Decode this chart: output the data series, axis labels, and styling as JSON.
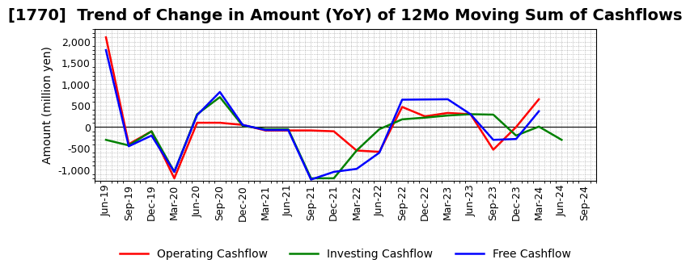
{
  "title": "[1770]  Trend of Change in Amount (YoY) of 12Mo Moving Sum of Cashflows",
  "ylabel": "Amount (million yen)",
  "x_labels": [
    "Jun-19",
    "Sep-19",
    "Dec-19",
    "Mar-20",
    "Jun-20",
    "Sep-20",
    "Dec-20",
    "Mar-21",
    "Jun-21",
    "Sep-21",
    "Dec-21",
    "Mar-22",
    "Jun-22",
    "Sep-22",
    "Dec-22",
    "Mar-23",
    "Jun-23",
    "Sep-23",
    "Dec-23",
    "Mar-24",
    "Jun-24",
    "Sep-24"
  ],
  "operating": [
    2100,
    -400,
    -100,
    -1200,
    100,
    100,
    50,
    -80,
    -80,
    -80,
    -100,
    -550,
    -580,
    470,
    250,
    330,
    300,
    -530,
    0,
    650,
    null,
    null
  ],
  "investing": [
    -300,
    -430,
    -100,
    -1050,
    300,
    700,
    30,
    -50,
    -50,
    -1200,
    -1200,
    -550,
    -50,
    180,
    220,
    270,
    300,
    290,
    -200,
    10,
    -300,
    null
  ],
  "free": [
    1800,
    -450,
    -200,
    -1050,
    280,
    820,
    50,
    -70,
    -70,
    -1230,
    -1050,
    -980,
    -600,
    640,
    645,
    650,
    300,
    -300,
    -280,
    370,
    null,
    null
  ],
  "line_colors": {
    "operating": "#ff0000",
    "investing": "#008000",
    "free": "#0000ff"
  },
  "legend_labels": {
    "operating": "Operating Cashflow",
    "investing": "Investing Cashflow",
    "free": "Free Cashflow"
  },
  "ylim": [
    -1250,
    2300
  ],
  "yticks": [
    -1000,
    -500,
    0,
    500,
    1000,
    1500,
    2000
  ],
  "grid_color": "#999999",
  "bg_color": "#ffffff",
  "plot_bg_color": "#f5f5f5",
  "title_fontsize": 14,
  "axis_fontsize": 10,
  "tick_fontsize": 9,
  "linewidth": 1.8
}
